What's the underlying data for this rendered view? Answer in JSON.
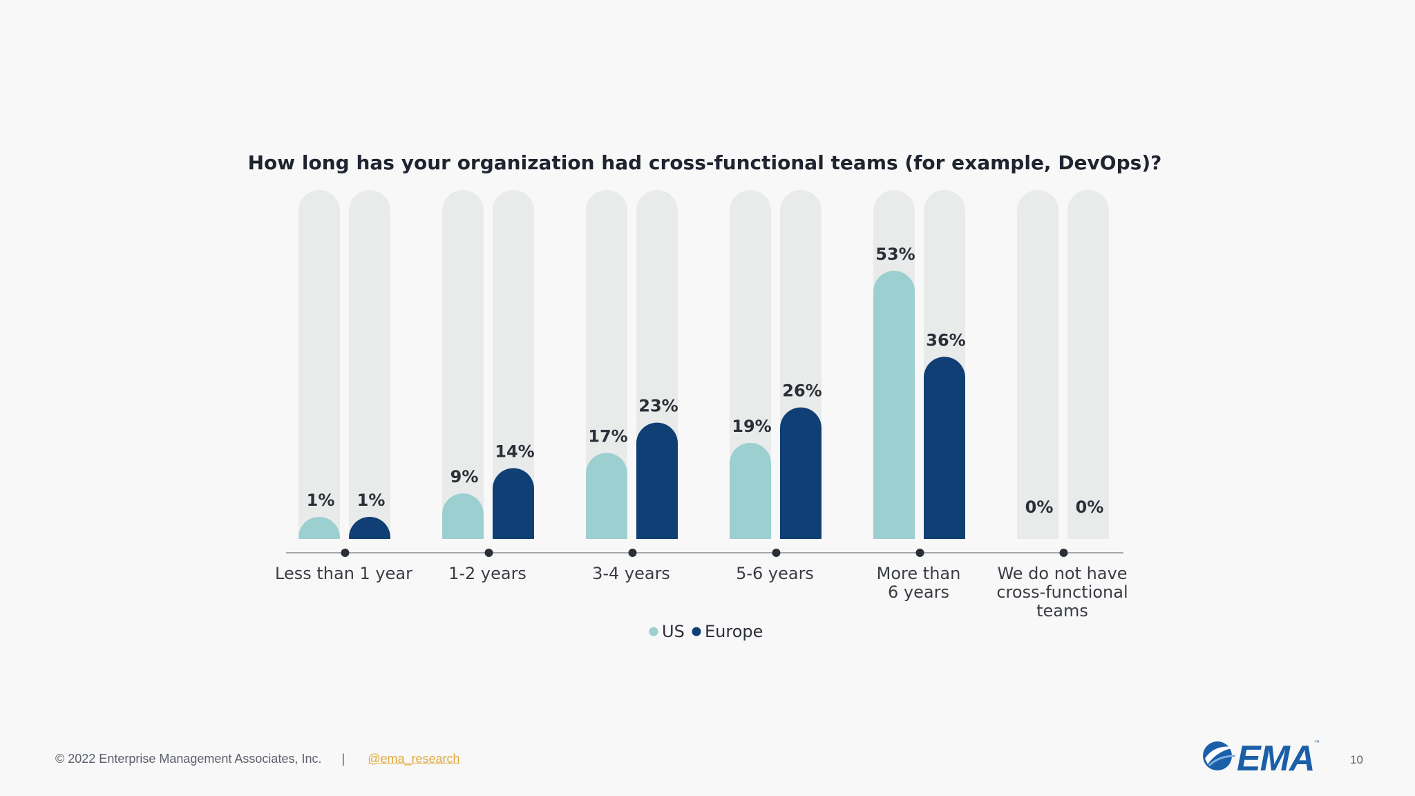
{
  "chart_data": {
    "type": "bar",
    "title": "How long has your organization had cross-functional teams (for example, DevOps)?",
    "categories": [
      [
        "Less than 1 year"
      ],
      [
        "1-2 years"
      ],
      [
        "3-4 years"
      ],
      [
        "5-6 years"
      ],
      [
        "More than",
        "6 years"
      ],
      [
        "We do not have",
        "cross-functional",
        "teams"
      ]
    ],
    "series": [
      {
        "name": "US",
        "color": "#9ccfcf",
        "values": [
          1,
          9,
          17,
          19,
          53,
          0
        ],
        "labels": [
          "1%",
          "9%",
          "17%",
          "19%",
          "53%",
          "0%"
        ]
      },
      {
        "name": "Europe",
        "color": "#0f3f75",
        "values": [
          1,
          14,
          23,
          26,
          36,
          0
        ],
        "labels": [
          "1%",
          "14%",
          "23%",
          "26%",
          "36%",
          "0%"
        ]
      }
    ],
    "ylim": [
      0,
      60
    ],
    "track_color": "#e9eaea",
    "legend_position": "bottom-center"
  },
  "footer": {
    "copyright": "© 2022 Enterprise Management Associates, Inc.",
    "separator": "|",
    "handle": "@ema_research",
    "page_number": "10"
  },
  "logo": {
    "text": "EMA",
    "tm": "™"
  }
}
